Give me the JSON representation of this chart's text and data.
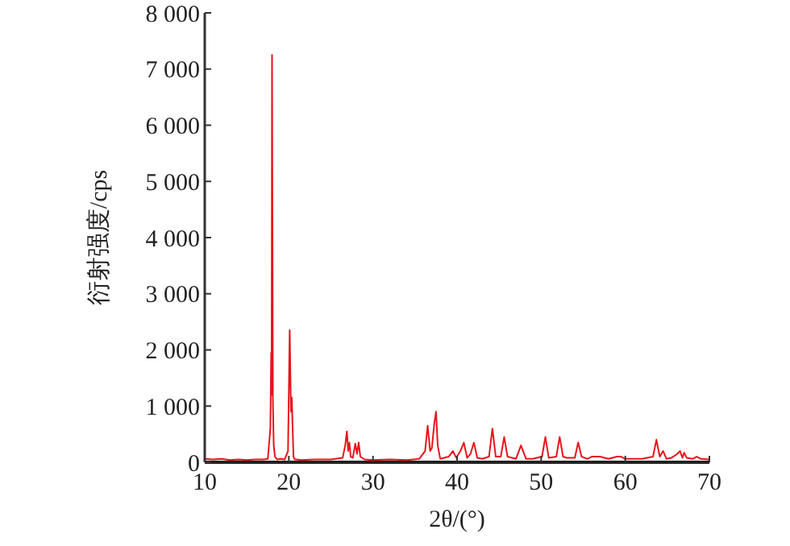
{
  "chart_data": {
    "type": "line",
    "xlabel": "2θ/(°)",
    "ylabel": "衍射强度/cps",
    "xlim": [
      10,
      70
    ],
    "ylim": [
      0,
      8000
    ],
    "xticks": [
      10,
      20,
      30,
      40,
      50,
      60,
      70
    ],
    "yticks": [
      {
        "value": 0,
        "label": "0"
      },
      {
        "value": 1000,
        "label": "1 000"
      },
      {
        "value": 2000,
        "label": "2 000"
      },
      {
        "value": 3000,
        "label": "3 000"
      },
      {
        "value": 4000,
        "label": "4 000"
      },
      {
        "value": 5000,
        "label": "5 000"
      },
      {
        "value": 6000,
        "label": "6 000"
      },
      {
        "value": 7000,
        "label": "7 000"
      },
      {
        "value": 8000,
        "label": "8 000"
      }
    ],
    "grid": false,
    "marker": "none",
    "line_style": "solid",
    "series": [
      {
        "color": "#e8141c",
        "x": [
          10,
          11,
          12,
          13,
          14,
          15,
          16,
          17,
          17.5,
          17.8,
          17.9,
          17.95,
          18.0,
          18.1,
          18.2,
          18.35,
          18.6,
          19,
          19.5,
          19.9,
          20.1,
          20.25,
          20.35,
          20.45,
          20.55,
          20.7,
          20.9,
          21.5,
          23,
          25,
          26.4,
          26.7,
          26.9,
          27.05,
          27.2,
          27.35,
          27.6,
          27.9,
          28.1,
          28.3,
          28.5,
          29,
          30,
          32,
          34,
          35.5,
          36.2,
          36.5,
          36.8,
          37.0,
          37.3,
          37.5,
          37.7,
          38,
          39,
          39.5,
          39.9,
          40.4,
          40.8,
          41.2,
          41.6,
          42.0,
          42.4,
          43,
          43.8,
          44.2,
          44.6,
          45.2,
          45.6,
          46,
          47,
          47.6,
          48.2,
          49,
          50.1,
          50.5,
          50.9,
          51.8,
          52.2,
          52.6,
          53,
          54,
          54.4,
          54.8,
          55.5,
          56,
          57,
          58,
          59,
          59.5,
          60,
          61,
          62,
          63.3,
          63.7,
          64.1,
          64.5,
          64.9,
          65.5,
          66.2,
          66.5,
          66.8,
          67,
          67.3,
          68,
          68.5,
          69,
          70
        ],
        "values": [
          60,
          50,
          60,
          40,
          50,
          40,
          50,
          50,
          60,
          600,
          1950,
          1200,
          7250,
          1100,
          300,
          100,
          50,
          60,
          50,
          200,
          2350,
          900,
          1150,
          600,
          100,
          50,
          50,
          40,
          50,
          50,
          80,
          300,
          550,
          200,
          350,
          100,
          80,
          330,
          150,
          350,
          100,
          50,
          40,
          50,
          40,
          60,
          200,
          650,
          200,
          250,
          700,
          900,
          300,
          60,
          100,
          200,
          80,
          200,
          350,
          80,
          150,
          350,
          80,
          60,
          100,
          600,
          100,
          100,
          450,
          100,
          60,
          300,
          60,
          60,
          100,
          450,
          80,
          100,
          450,
          100,
          80,
          80,
          350,
          100,
          60,
          100,
          100,
          60,
          100,
          100,
          60,
          60,
          60,
          100,
          400,
          100,
          200,
          60,
          80,
          150,
          200,
          80,
          170,
          80,
          60,
          100,
          60,
          50
        ]
      }
    ]
  }
}
